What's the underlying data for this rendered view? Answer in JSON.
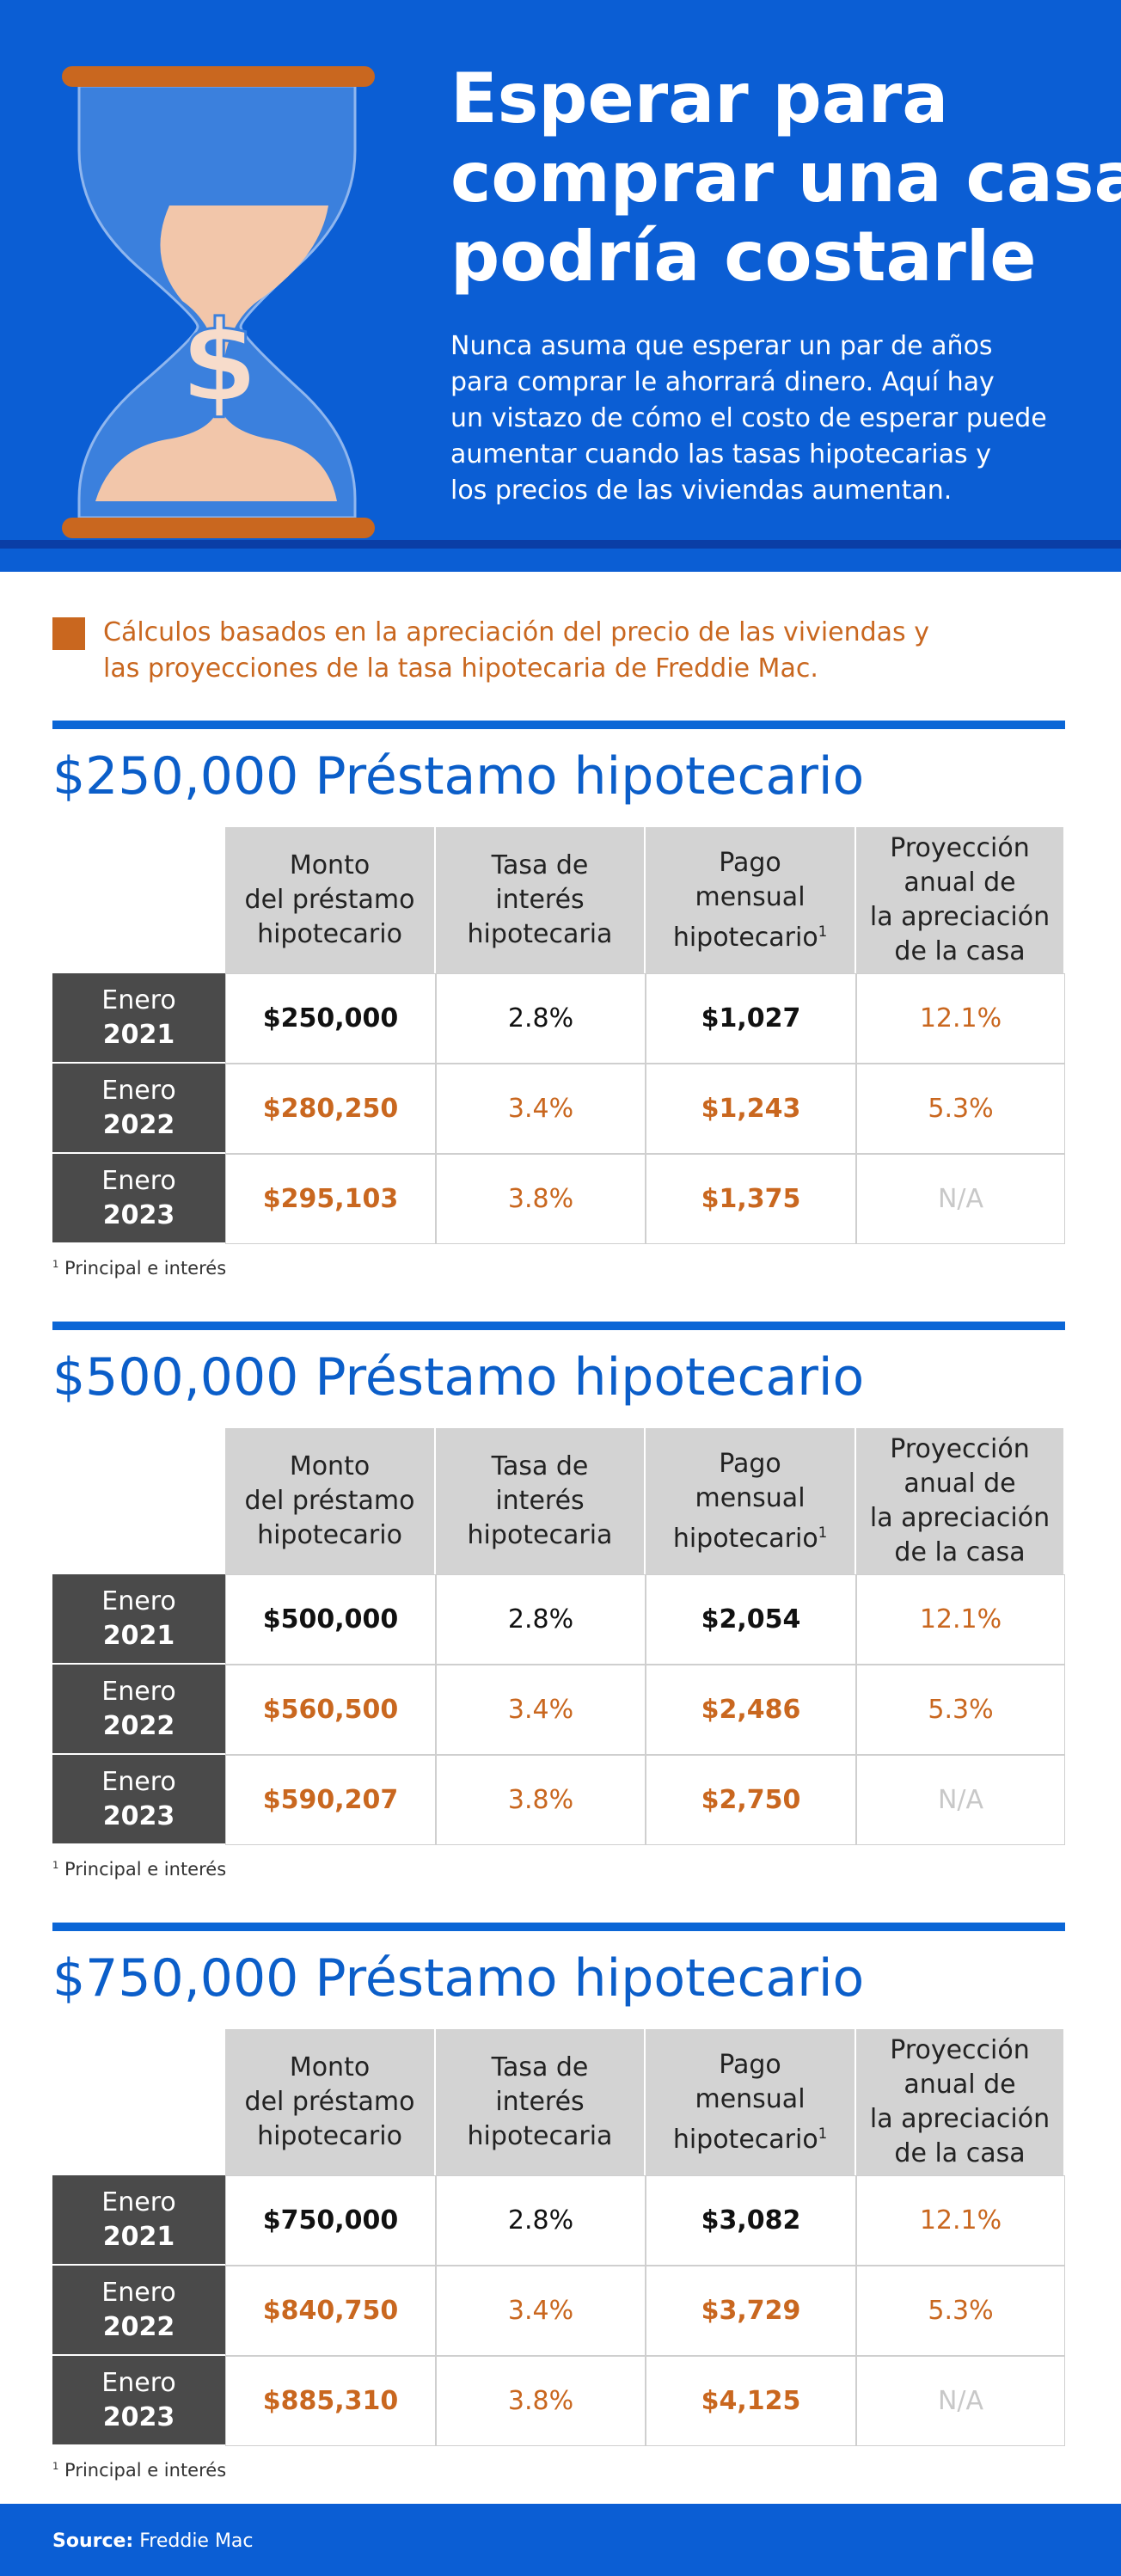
{
  "header": {
    "title_lines": [
      "Esperar para",
      "comprar una casa",
      "podría costarle"
    ],
    "intro_lines": [
      "Nunca asuma que esperar un par de años",
      "para comprar le ahorrará dinero. Aquí hay",
      "un vistazo de cómo el costo de esperar puede",
      "aumentar cuando las tasas hipotecarias y",
      "los precios de las viviendas aumentan."
    ]
  },
  "note_lines": [
    "Cálculos basados en la apreciación del precio de las viviendas y",
    "las proyecciones de la tasa hipotecaria de Freddie Mac."
  ],
  "tables": [
    {
      "heading": "$250,000 Préstamo hipotecario",
      "columns": [
        [
          "Monto",
          "del préstamo",
          "hipotecario"
        ],
        [
          "Tasa de",
          "interés",
          "hipotecaria"
        ],
        [
          "Pago",
          "mensual",
          "hipotecario"
        ],
        [
          "Proyección",
          "anual de",
          "la apreciación",
          "de la casa"
        ]
      ],
      "footnote_mark": "1",
      "rows": [
        {
          "label": [
            "Enero",
            "2021"
          ],
          "cells": [
            "$250,000",
            "2.8%",
            "$1,027",
            "12.1%"
          ]
        },
        {
          "label": [
            "Enero",
            "2022"
          ],
          "cells": [
            "$280,250",
            "3.4%",
            "$1,243",
            "5.3%"
          ]
        },
        {
          "label": [
            "Enero",
            "2023"
          ],
          "cells": [
            "$295,103",
            "3.8%",
            "$1,375",
            "N/A"
          ]
        }
      ],
      "footnote": {
        "mark": "1",
        "text": "Principal e interés"
      }
    },
    {
      "heading": "$500,000 Préstamo hipotecario",
      "columns": [
        [
          "Monto",
          "del préstamo",
          "hipotecario"
        ],
        [
          "Tasa de",
          "interés",
          "hipotecaria"
        ],
        [
          "Pago",
          "mensual",
          "hipotecario"
        ],
        [
          "Proyección",
          "anual de",
          "la apreciación",
          "de la casa"
        ]
      ],
      "footnote_mark": "1",
      "rows": [
        {
          "label": [
            "Enero",
            "2021"
          ],
          "cells": [
            "$500,000",
            "2.8%",
            "$2,054",
            "12.1%"
          ]
        },
        {
          "label": [
            "Enero",
            "2022"
          ],
          "cells": [
            "$560,500",
            "3.4%",
            "$2,486",
            "5.3%"
          ]
        },
        {
          "label": [
            "Enero",
            "2023"
          ],
          "cells": [
            "$590,207",
            "3.8%",
            "$2,750",
            "N/A"
          ]
        }
      ],
      "footnote": {
        "mark": "1",
        "text": "Principal e interés"
      }
    },
    {
      "heading": "$750,000 Préstamo hipotecario",
      "columns": [
        [
          "Monto",
          "del préstamo",
          "hipotecario"
        ],
        [
          "Tasa de",
          "interés",
          "hipotecaria"
        ],
        [
          "Pago",
          "mensual",
          "hipotecario"
        ],
        [
          "Proyección",
          "anual de",
          "la apreciación",
          "de la casa"
        ]
      ],
      "footnote_mark": "1",
      "rows": [
        {
          "label": [
            "Enero",
            "2021"
          ],
          "cells": [
            "$750,000",
            "2.8%",
            "$3,082",
            "12.1%"
          ]
        },
        {
          "label": [
            "Enero",
            "2022"
          ],
          "cells": [
            "$840,750",
            "3.4%",
            "$3,729",
            "5.3%"
          ]
        },
        {
          "label": [
            "Enero",
            "2023"
          ],
          "cells": [
            "$885,310",
            "3.8%",
            "$4,125",
            "N/A"
          ]
        }
      ],
      "footnote": {
        "mark": "1",
        "text": "Principal e interés"
      }
    }
  ],
  "footer": {
    "source_label": "Source:",
    "source_text": "Freddie Mac"
  }
}
